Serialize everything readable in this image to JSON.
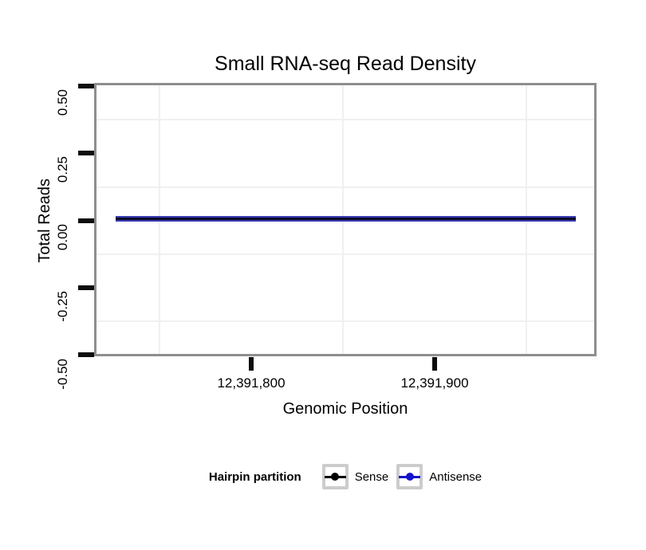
{
  "chart_data": {
    "type": "line",
    "title": "Small RNA-seq Read Density",
    "xlabel": "Genomic Position",
    "ylabel": "Total Reads",
    "x_tick_labels": [
      "12,391,800",
      "12,391,900"
    ],
    "x_tick_values": [
      12391800,
      12391900
    ],
    "y_tick_labels": [
      "0.50",
      "0.25",
      "0.00",
      "-0.25",
      "-0.50"
    ],
    "y_tick_values": [
      0.5,
      0.25,
      0.0,
      -0.25,
      -0.5
    ],
    "ylim": [
      -0.5,
      0.5
    ],
    "xlim_shown": [
      12391714,
      12391988
    ],
    "grid": "minor gridlines only, very light gray; major gridlines not visible",
    "legend_position": "bottom",
    "series": [
      {
        "name": "Sense",
        "color": "#000000",
        "x": [
          12391726,
          12391977
        ],
        "values": [
          0,
          0
        ],
        "note": "flat horizontal line at y = 0"
      },
      {
        "name": "Antisense",
        "color": "#1414cc",
        "x": [
          12391726,
          12391977
        ],
        "values": [
          0,
          0
        ],
        "note": "flat horizontal line at y = 0, overlapping the Sense line"
      }
    ]
  },
  "header": {
    "title": "Small RNA-seq Read Density"
  },
  "y_axis": {
    "label": "Total Reads",
    "ticks": [
      "0.50",
      "0.25",
      "0.00",
      "-0.25",
      "-0.50"
    ]
  },
  "x_axis": {
    "label": "Genomic Position",
    "ticks": [
      "12,391,800",
      "12,391,900"
    ]
  },
  "legend": {
    "title": "Hairpin partition",
    "items": [
      {
        "label": "Sense",
        "color": "#000000"
      },
      {
        "label": "Antisense",
        "color": "#1414cc"
      }
    ]
  },
  "colors": {
    "background": "#ffffff",
    "panel_border": "#8e8e8e",
    "axis_tick": "#0d0d0d",
    "minor_gridline": "#f1f0f0",
    "legend_key_border": "#cccccc",
    "sense_line": "#000000",
    "antisense_line": "#1414cc",
    "overlap_line_core": "#0a0a28"
  }
}
